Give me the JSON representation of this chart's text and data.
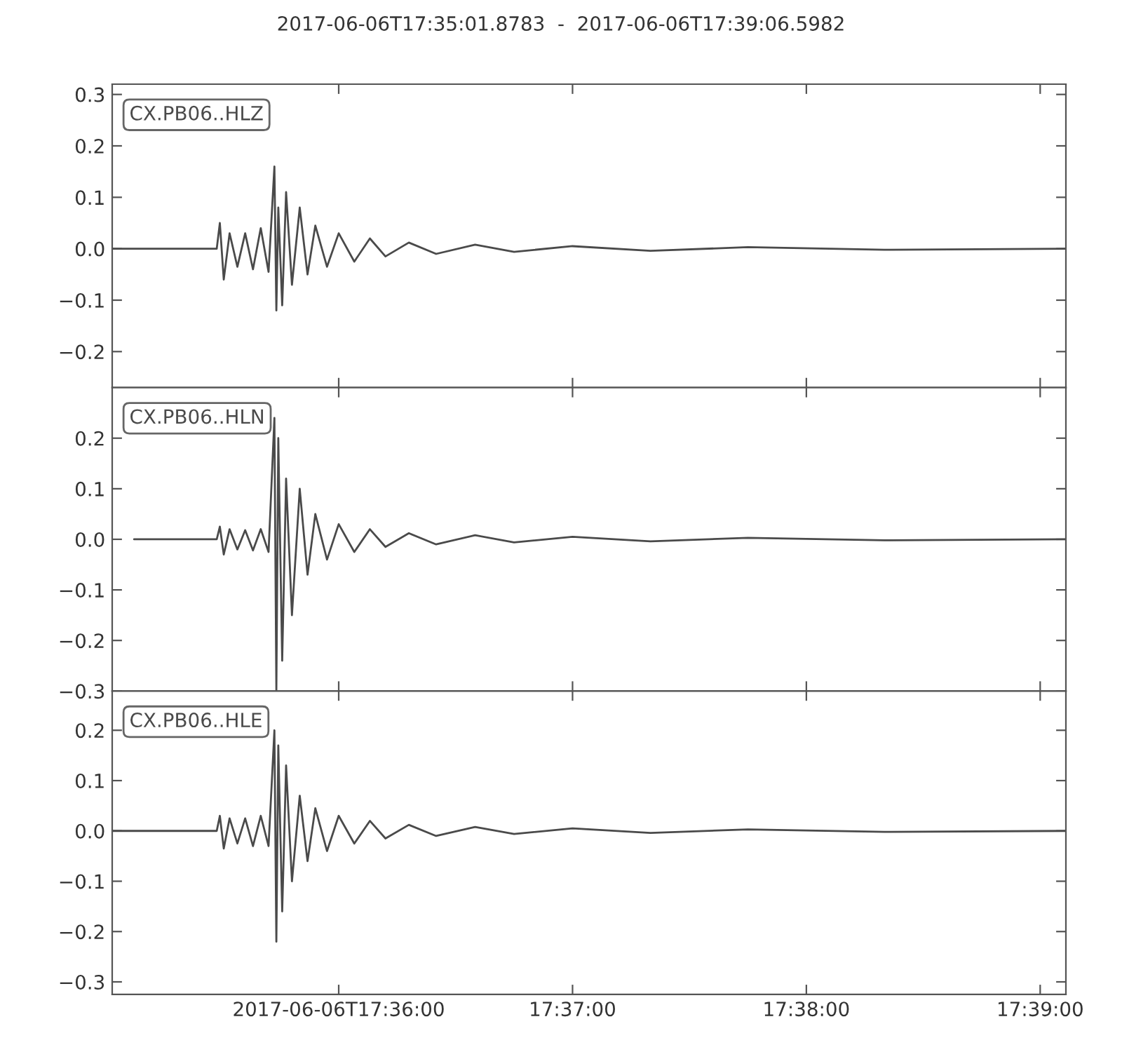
{
  "chart_data": [
    {
      "type": "line",
      "title": "2017-06-06T17:35:01.8783  -  2017-06-06T17:39:06.5982",
      "grid": false,
      "tick_labels": "y",
      "xlim": [
        17.583855,
        17.651833
      ],
      "xticks": [
        {
          "value": 17.6,
          "label": null
        },
        {
          "value": 17.616667,
          "label": null
        },
        {
          "value": 17.633333,
          "label": null
        },
        {
          "value": 17.65,
          "label": null
        }
      ],
      "ylim": [
        -0.27,
        0.32
      ],
      "yticks": [
        {
          "value": -0.2,
          "label": "−0.2"
        },
        {
          "value": -0.1,
          "label": "−0.1"
        },
        {
          "value": 0.0,
          "label": "0.0"
        },
        {
          "value": 0.1,
          "label": "0.1"
        },
        {
          "value": 0.2,
          "label": "0.2"
        },
        {
          "value": 0.3,
          "label": "0.3"
        }
      ],
      "series": [
        {
          "name": "CX.PB06..HLZ",
          "color": "#4a4a4a",
          "x": [
            17.583855,
            17.591306,
            17.591528,
            17.591806,
            17.592222,
            17.592778,
            17.593333,
            17.593889,
            17.594444,
            17.595,
            17.595417,
            17.595556,
            17.595694,
            17.595972,
            17.59625,
            17.596667,
            17.597222,
            17.597778,
            17.598333,
            17.599167,
            17.6,
            17.601111,
            17.602222,
            17.603333,
            17.605,
            17.606944,
            17.609722,
            17.6125,
            17.616667,
            17.622222,
            17.629167,
            17.638889,
            17.651833
          ],
          "values": [
            0,
            0,
            0.05,
            -0.06,
            0.03,
            -0.035,
            0.03,
            -0.04,
            0.04,
            -0.045,
            0.16,
            -0.12,
            0.08,
            -0.11,
            0.11,
            -0.07,
            0.08,
            -0.05,
            0.045,
            -0.035,
            0.03,
            -0.025,
            0.02,
            -0.015,
            0.012,
            -0.01,
            0.008,
            -0.006,
            0.005,
            -0.004,
            0.003,
            -0.002,
            0
          ]
        }
      ]
    },
    {
      "type": "line",
      "grid": false,
      "tick_labels": "y",
      "xlim": [
        17.583855,
        17.651833
      ],
      "xticks": [
        {
          "value": 17.6,
          "label": null
        },
        {
          "value": 17.616667,
          "label": null
        },
        {
          "value": 17.633333,
          "label": null
        },
        {
          "value": 17.65,
          "label": null
        }
      ],
      "ylim": [
        -0.3,
        0.3
      ],
      "yticks": [
        {
          "value": -0.3,
          "label": "−0.3"
        },
        {
          "value": -0.2,
          "label": "−0.2"
        },
        {
          "value": -0.1,
          "label": "−0.1"
        },
        {
          "value": 0.0,
          "label": "0.0"
        },
        {
          "value": 0.1,
          "label": "0.1"
        },
        {
          "value": 0.2,
          "label": "0.2"
        }
      ],
      "series": [
        {
          "name": "CX.PB06..HLN",
          "color": "#4a4a4a",
          "x": [
            17.585417,
            17.591306,
            17.591528,
            17.591806,
            17.592222,
            17.592778,
            17.593333,
            17.593889,
            17.594444,
            17.595,
            17.595417,
            17.595556,
            17.595694,
            17.595972,
            17.59625,
            17.596667,
            17.597222,
            17.597778,
            17.598333,
            17.599167,
            17.6,
            17.601111,
            17.602222,
            17.603333,
            17.605,
            17.606944,
            17.609722,
            17.6125,
            17.616667,
            17.622222,
            17.629167,
            17.638889,
            17.651833
          ],
          "values": [
            0,
            0,
            0.025,
            -0.03,
            0.02,
            -0.02,
            0.018,
            -0.022,
            0.02,
            -0.025,
            0.24,
            -0.3,
            0.2,
            -0.24,
            0.12,
            -0.15,
            0.1,
            -0.07,
            0.05,
            -0.04,
            0.03,
            -0.025,
            0.02,
            -0.015,
            0.012,
            -0.01,
            0.008,
            -0.006,
            0.005,
            -0.004,
            0.003,
            -0.002,
            0
          ]
        }
      ]
    },
    {
      "type": "line",
      "grid": false,
      "xlim": [
        17.583855,
        17.651833
      ],
      "xticks": [
        {
          "value": 17.6,
          "label": "2017-06-06T17:36:00"
        },
        {
          "value": 17.616667,
          "label": "17:37:00"
        },
        {
          "value": 17.633333,
          "label": "17:38:00"
        },
        {
          "value": 17.65,
          "label": "17:39:00"
        }
      ],
      "ylim": [
        -0.325,
        0.278
      ],
      "yticks": [
        {
          "value": -0.3,
          "label": "−0.3"
        },
        {
          "value": -0.2,
          "label": "−0.2"
        },
        {
          "value": -0.1,
          "label": "−0.1"
        },
        {
          "value": 0.0,
          "label": "0.0"
        },
        {
          "value": 0.1,
          "label": "0.1"
        },
        {
          "value": 0.2,
          "label": "0.2"
        }
      ],
      "series": [
        {
          "name": "CX.PB06..HLE",
          "color": "#4a4a4a",
          "x": [
            17.583855,
            17.591306,
            17.591528,
            17.591806,
            17.592222,
            17.592778,
            17.593333,
            17.593889,
            17.594444,
            17.595,
            17.595417,
            17.595556,
            17.595694,
            17.595972,
            17.59625,
            17.596667,
            17.597222,
            17.597778,
            17.598333,
            17.599167,
            17.6,
            17.601111,
            17.602222,
            17.603333,
            17.605,
            17.606944,
            17.609722,
            17.6125,
            17.616667,
            17.622222,
            17.629167,
            17.638889,
            17.651833
          ],
          "values": [
            0,
            0,
            0.03,
            -0.035,
            0.025,
            -0.025,
            0.025,
            -0.03,
            0.03,
            -0.03,
            0.2,
            -0.22,
            0.17,
            -0.16,
            0.13,
            -0.1,
            0.07,
            -0.06,
            0.045,
            -0.04,
            0.03,
            -0.025,
            0.02,
            -0.015,
            0.012,
            -0.01,
            0.008,
            -0.006,
            0.005,
            -0.004,
            0.003,
            -0.002,
            0
          ]
        }
      ]
    }
  ]
}
